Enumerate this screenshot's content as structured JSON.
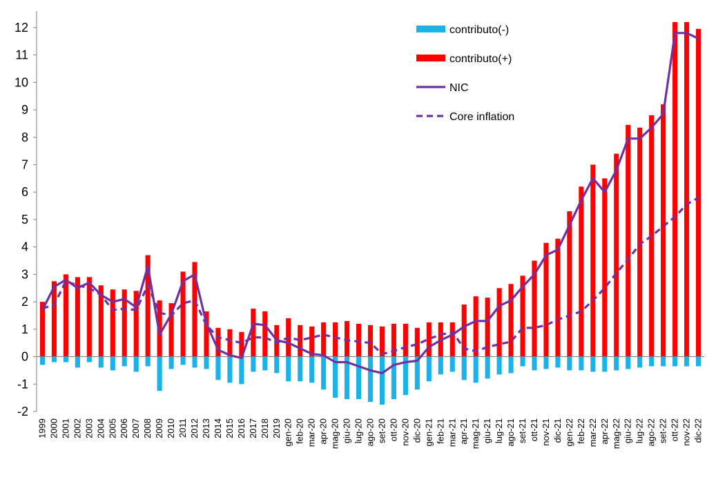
{
  "chart_data": {
    "type": "bar",
    "title": "",
    "xlabel": "",
    "ylabel": "",
    "ylim": [
      -2,
      12.5
    ],
    "yticks": [
      -2,
      -1,
      0,
      1,
      2,
      3,
      4,
      5,
      6,
      7,
      8,
      9,
      10,
      11,
      12
    ],
    "grid": false,
    "legend_position": "top-right",
    "colors": {
      "contributo_neg": "#1ab2e8",
      "contributo_pos": "#ff0000",
      "nic": "#7030a0",
      "core": "#7030a0",
      "axis": "#7f7f7f"
    },
    "categories": [
      "1999",
      "2000",
      "2001",
      "2002",
      "2003",
      "2004",
      "2005",
      "2006",
      "2007",
      "2008",
      "2009",
      "2010",
      "2011",
      "2012",
      "2013",
      "2014",
      "2015",
      "2016",
      "2017",
      "2018",
      "2019",
      "gen-20",
      "feb-20",
      "mar-20",
      "apr-20",
      "mag-20",
      "giu-20",
      "lug-20",
      "ago-20",
      "set-20",
      "ott-20",
      "nov-20",
      "dic-20",
      "gen-21",
      "feb-21",
      "mar-21",
      "apr-21",
      "mag-21",
      "giu-21",
      "lug-21",
      "ago-21",
      "set-21",
      "ott-21",
      "nov-21",
      "dic-21",
      "gen-22",
      "feb-22",
      "mar-22",
      "apr-22",
      "mag-22",
      "giu-22",
      "lug-22",
      "ago-22",
      "set-22",
      "ott-22",
      "nov-22",
      "dic-22"
    ],
    "series": [
      {
        "name": "contributo(-)",
        "kind": "bar",
        "values": [
          -0.3,
          -0.2,
          -0.2,
          -0.4,
          -0.2,
          -0.4,
          -0.5,
          -0.35,
          -0.55,
          -0.35,
          -1.25,
          -0.45,
          -0.3,
          -0.4,
          -0.45,
          -0.85,
          -0.95,
          -1.0,
          -0.55,
          -0.5,
          -0.6,
          -0.9,
          -0.9,
          -0.95,
          -1.2,
          -1.5,
          -1.55,
          -1.55,
          -1.65,
          -1.75,
          -1.55,
          -1.4,
          -1.2,
          -0.9,
          -0.65,
          -0.55,
          -0.85,
          -0.95,
          -0.8,
          -0.65,
          -0.6,
          -0.35,
          -0.5,
          -0.45,
          -0.4,
          -0.5,
          -0.5,
          -0.55,
          -0.55,
          -0.5,
          -0.45,
          -0.4,
          -0.35,
          -0.35,
          -0.35,
          -0.35,
          -0.35
        ]
      },
      {
        "name": "contributo(+)",
        "kind": "bar",
        "values": [
          2.0,
          2.75,
          3.0,
          2.9,
          2.9,
          2.6,
          2.45,
          2.45,
          2.4,
          3.7,
          2.05,
          1.95,
          3.1,
          3.45,
          1.65,
          1.05,
          1.0,
          0.9,
          1.75,
          1.65,
          1.15,
          1.4,
          1.15,
          1.1,
          1.25,
          1.25,
          1.3,
          1.2,
          1.15,
          1.1,
          1.2,
          1.2,
          1.05,
          1.25,
          1.25,
          1.25,
          1.9,
          2.2,
          2.15,
          2.5,
          2.65,
          2.95,
          3.5,
          4.15,
          4.3,
          5.3,
          6.2,
          7.0,
          6.5,
          7.4,
          8.45,
          8.35,
          8.8,
          9.2,
          12.2,
          12.2,
          11.95
        ]
      },
      {
        "name": "NIC",
        "kind": "line",
        "values": [
          1.7,
          2.55,
          2.8,
          2.5,
          2.7,
          2.25,
          2.0,
          2.1,
          1.8,
          3.3,
          0.8,
          1.55,
          2.75,
          3.0,
          1.2,
          0.25,
          0.05,
          -0.05,
          1.2,
          1.15,
          0.6,
          0.5,
          0.3,
          0.1,
          0.05,
          -0.2,
          -0.2,
          -0.35,
          -0.5,
          -0.6,
          -0.3,
          -0.2,
          -0.15,
          0.35,
          0.6,
          0.8,
          1.1,
          1.3,
          1.3,
          1.85,
          2.05,
          2.55,
          3.0,
          3.7,
          3.9,
          4.8,
          5.7,
          6.5,
          6.0,
          6.8,
          7.95,
          7.95,
          8.35,
          8.85,
          11.8,
          11.8,
          11.6
        ]
      },
      {
        "name": "Core inflation",
        "kind": "dashed-line",
        "values": [
          1.75,
          1.9,
          2.75,
          2.6,
          2.5,
          2.25,
          1.7,
          1.75,
          1.7,
          2.6,
          1.6,
          1.5,
          1.95,
          2.05,
          1.15,
          0.7,
          0.6,
          0.5,
          0.7,
          0.7,
          0.5,
          0.7,
          0.6,
          0.7,
          0.8,
          0.7,
          0.6,
          0.55,
          0.5,
          0.1,
          0.2,
          0.35,
          0.45,
          0.65,
          0.8,
          0.9,
          0.3,
          0.2,
          0.35,
          0.45,
          0.55,
          1.05,
          1.05,
          1.15,
          1.35,
          1.5,
          1.65,
          2.05,
          2.5,
          3.05,
          3.55,
          4.1,
          4.4,
          4.75,
          5.1,
          5.55,
          5.8
        ]
      }
    ]
  }
}
